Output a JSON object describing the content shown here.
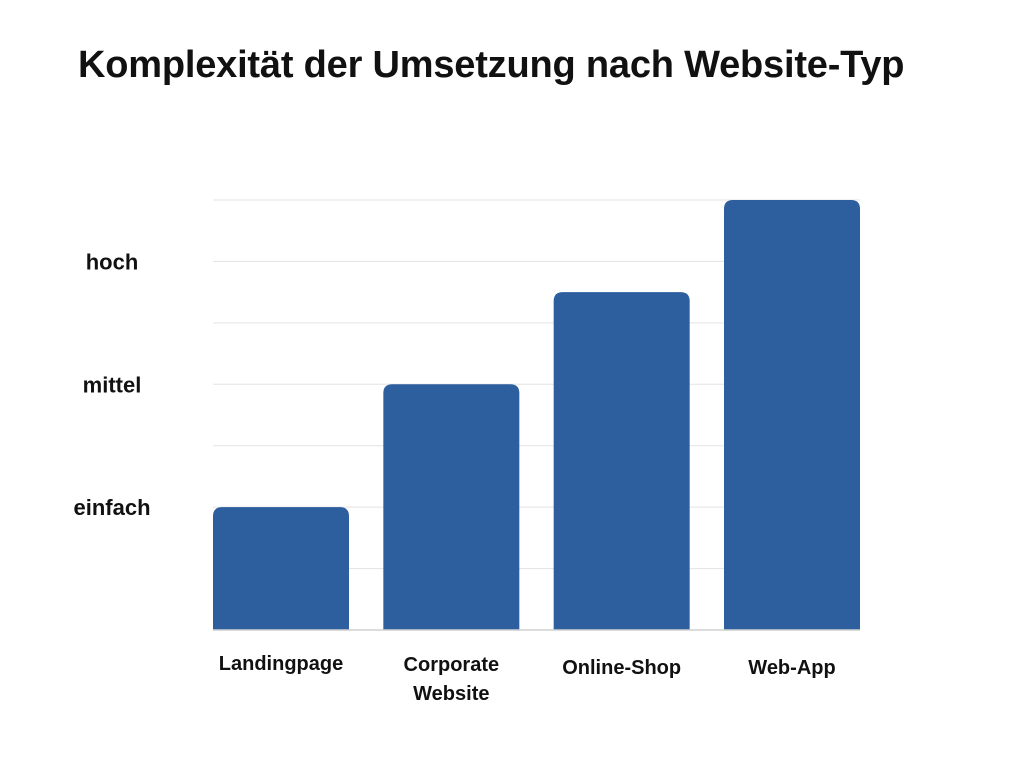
{
  "chart_data": {
    "type": "bar",
    "title": "Komplexität der Umsetzung nach Website-Typ",
    "categories": [
      "Landingpage",
      "Corporate Website",
      "Online-Shop",
      "Web-App"
    ],
    "values": [
      2,
      4,
      5.5,
      7
    ],
    "ylim": [
      0,
      7
    ],
    "yticks": [
      {
        "value": 2,
        "label": "einfach"
      },
      {
        "value": 4,
        "label": "mittel"
      },
      {
        "value": 6,
        "label": "hoch"
      }
    ],
    "gridlines": [
      1,
      2,
      3,
      4,
      5,
      6,
      7
    ],
    "grid": true,
    "xlabel": "",
    "ylabel": "",
    "bar_color": "#2d5e9e",
    "grid_color": "#e3e3e3",
    "axis_color": "#d0d0d0"
  }
}
